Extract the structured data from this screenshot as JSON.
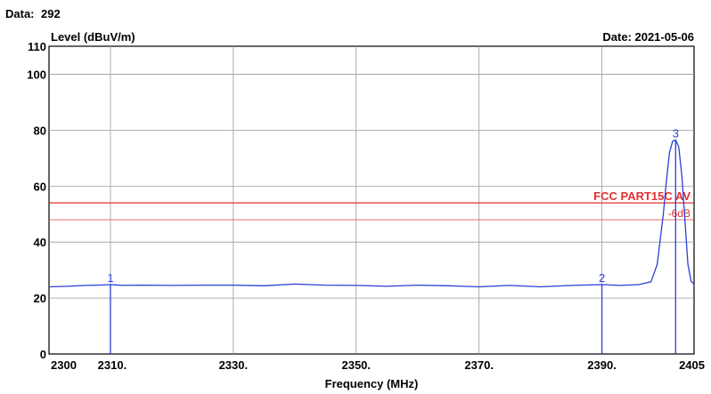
{
  "header": {
    "data_label": "Data:",
    "data_value": "292",
    "date_text": "Date: 2021-05-06"
  },
  "colors": {
    "trace": "#2a3fd6",
    "limit": "#e03030",
    "grid": "#9a9a9a",
    "data_value": "#1a3cd8"
  },
  "chart_data": {
    "type": "line",
    "ylabel": "Level (dBuV/m)",
    "xlabel": "Frequency (MHz)",
    "xlim": [
      2300,
      2405
    ],
    "ylim": [
      0,
      110
    ],
    "grid": true,
    "x_ticks": [
      {
        "value": 2300,
        "label": "2300"
      },
      {
        "value": 2310,
        "label": "2310."
      },
      {
        "value": 2330,
        "label": "2330."
      },
      {
        "value": 2350,
        "label": "2350."
      },
      {
        "value": 2370,
        "label": "2370."
      },
      {
        "value": 2390,
        "label": "2390."
      },
      {
        "value": 2405,
        "label": "2405"
      }
    ],
    "y_ticks": [
      {
        "value": 0,
        "label": "0"
      },
      {
        "value": 20,
        "label": "20"
      },
      {
        "value": 40,
        "label": "40"
      },
      {
        "value": 60,
        "label": "60"
      },
      {
        "value": 80,
        "label": "80"
      },
      {
        "value": 100,
        "label": "100"
      },
      {
        "value": 110,
        "label": "110"
      }
    ],
    "limit_lines": [
      {
        "value": 54,
        "label": "FCC PART15C AV"
      },
      {
        "value": 48,
        "label": "-6dB"
      }
    ],
    "markers": [
      {
        "label": "1",
        "x": 2310,
        "y": 24.8
      },
      {
        "label": "2",
        "x": 2390,
        "y": 24.8
      },
      {
        "label": "3",
        "x": 2402,
        "y": 76.5
      }
    ],
    "series": [
      {
        "x": [
          2300,
          2303,
          2306,
          2308,
          2310,
          2312,
          2315,
          2320,
          2325,
          2330,
          2335,
          2340,
          2345,
          2350,
          2355,
          2360,
          2365,
          2370,
          2375,
          2380,
          2385,
          2390,
          2393,
          2396,
          2398,
          2399,
          2400,
          2400.5,
          2401,
          2401.5,
          2402,
          2402.5,
          2403,
          2403.5,
          2404,
          2404.5,
          2405
        ],
        "y": [
          24.0,
          24.2,
          24.5,
          24.6,
          24.8,
          24.5,
          24.6,
          24.5,
          24.6,
          24.6,
          24.4,
          25.0,
          24.6,
          24.5,
          24.2,
          24.6,
          24.4,
          24.0,
          24.5,
          24.0,
          24.5,
          24.8,
          24.5,
          24.8,
          25.8,
          32,
          50,
          62,
          72,
          76,
          76.5,
          74,
          64,
          48,
          32,
          26,
          25
        ]
      }
    ]
  }
}
